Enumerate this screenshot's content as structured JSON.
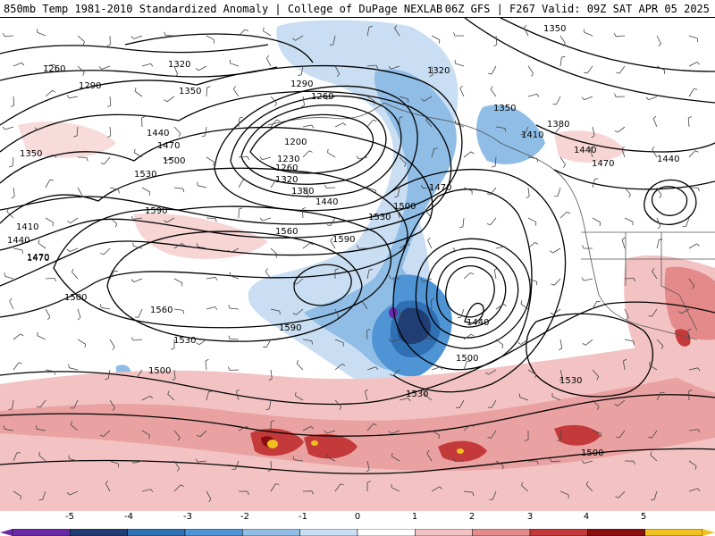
{
  "header": {
    "left_title": "850mb Temp 1981-2010 Standardized Anomaly | College of DuPage NEXLAB",
    "right_title": "06Z GFS | F267 Valid: 09Z SAT APR 05 2025"
  },
  "map": {
    "variable": "850mb Temp Standardized Anomaly",
    "contour_labels": [
      {
        "text": "1350"
      },
      {
        "text": "1260"
      },
      {
        "text": "1290"
      },
      {
        "text": "1320"
      },
      {
        "text": "1350"
      },
      {
        "text": "1290"
      },
      {
        "text": "1260"
      },
      {
        "text": "1320"
      },
      {
        "text": "1350"
      },
      {
        "text": "1380"
      },
      {
        "text": "1440"
      },
      {
        "text": "1470"
      },
      {
        "text": "1500"
      },
      {
        "text": "1200"
      },
      {
        "text": "1230"
      },
      {
        "text": "1260"
      },
      {
        "text": "1320"
      },
      {
        "text": "1380"
      },
      {
        "text": "1440"
      },
      {
        "text": "1410"
      },
      {
        "text": "1470"
      },
      {
        "text": "1440"
      },
      {
        "text": "1470"
      },
      {
        "text": "1440"
      },
      {
        "text": "1350"
      },
      {
        "text": "1530"
      },
      {
        "text": "1590"
      },
      {
        "text": "1560"
      },
      {
        "text": "1590"
      },
      {
        "text": "1530"
      },
      {
        "text": "1500"
      },
      {
        "text": "1470"
      },
      {
        "text": "1410"
      },
      {
        "text": "1440"
      },
      {
        "text": "1470"
      },
      {
        "text": "1500"
      },
      {
        "text": "1560"
      },
      {
        "text": "1590"
      },
      {
        "text": "1440"
      },
      {
        "text": "1530"
      },
      {
        "text": "1500"
      },
      {
        "text": "1530"
      },
      {
        "text": "1500"
      },
      {
        "text": "1530"
      },
      {
        "text": "1500"
      }
    ]
  },
  "legend": {
    "ticks": [
      "-5",
      "-4",
      "-3",
      "-2",
      "-1",
      "0",
      "1",
      "2",
      "3",
      "4",
      "5"
    ],
    "colors": [
      "#6a2aa8",
      "#203e74",
      "#2f6fb3",
      "#4f94d4",
      "#8fbde6",
      "#c9def2",
      "#ffffff",
      "#f3c3c3",
      "#e48a8a",
      "#c43a3a",
      "#8a1010",
      "#f0c020"
    ]
  }
}
